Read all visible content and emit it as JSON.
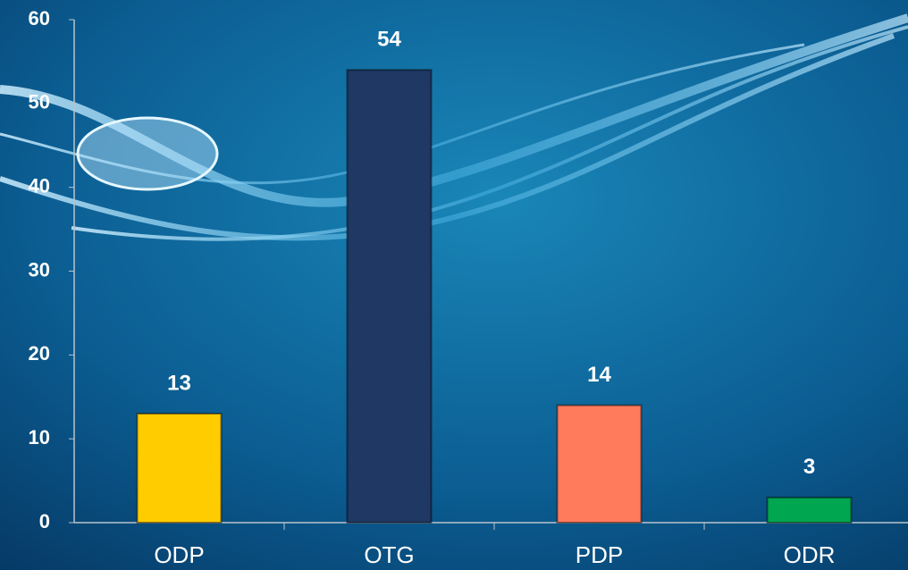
{
  "chart_data": {
    "type": "bar",
    "categories": [
      "ODP",
      "OTG",
      "PDP",
      "ODR"
    ],
    "values": [
      13,
      54,
      14,
      3
    ],
    "colors": [
      "#ffcc00",
      "#1f3864",
      "#ff7b5c",
      "#00a650"
    ],
    "ylim": [
      0,
      60
    ],
    "yticks": [
      0,
      10,
      20,
      30,
      40,
      50,
      60
    ],
    "grid": false
  }
}
